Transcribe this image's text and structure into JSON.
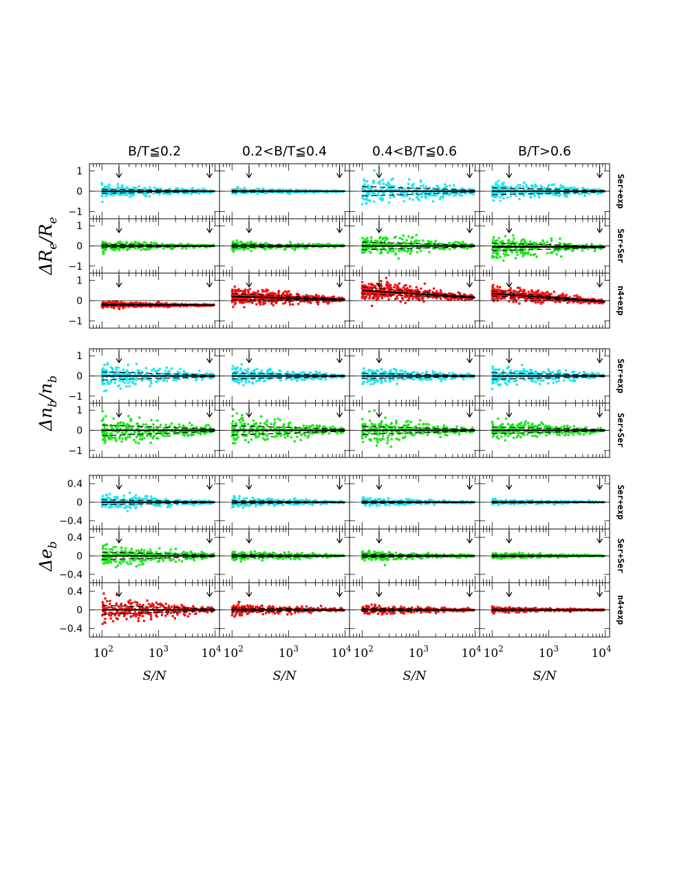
{
  "chart_data": {
    "type": "scatter",
    "column_titles": [
      "B/T≦0.2",
      "0.2<B/T≦0.4",
      "0.4<B/T≦0.6",
      "B/T>0.6"
    ],
    "xlabel": "S/N",
    "x_scale": "log",
    "xlim": [
      60,
      12000
    ],
    "x_tick_labels": [
      {
        "value": 100,
        "base": "10",
        "exp": "2"
      },
      {
        "value": 1000,
        "base": "10",
        "exp": "3"
      },
      {
        "value": 10000,
        "base": "10",
        "exp": "4"
      }
    ],
    "arrow_markers_x": [
      200,
      8000
    ],
    "groups": [
      {
        "ylabel": "ΔR_e/R_e",
        "ylabel_main": "ΔR",
        "ylabel_sub": "e",
        "ylabel_div": "/R",
        "ylabel_sub2": "e",
        "ylim": [
          -1.35,
          1.35
        ],
        "yticks": [
          -1,
          0,
          1
        ],
        "rows": [
          {
            "model": "Ser+exp",
            "color": "#22e5f0",
            "bias": [
              0.0,
              0.0,
              0.0,
              0.0
            ],
            "spread": [
              0.15,
              0.07,
              0.35,
              0.25
            ]
          },
          {
            "model": "Ser+Ser",
            "color": "#1ee61e",
            "bias": [
              0.0,
              0.0,
              0.0,
              -0.05
            ],
            "spread": [
              0.12,
              0.12,
              0.28,
              0.28
            ]
          },
          {
            "model": "n4+exp",
            "color": "#f01414",
            "bias": [
              -0.2,
              0.2,
              0.5,
              0.35
            ],
            "bias_end": [
              -0.22,
              0.05,
              0.15,
              -0.05
            ],
            "spread": [
              0.07,
              0.22,
              0.25,
              0.18
            ]
          }
        ]
      },
      {
        "ylabel": "Δn_b/n_b",
        "ylabel_main": "Δn",
        "ylabel_sub": "b",
        "ylabel_div": "/n",
        "ylabel_sub2": "b",
        "ylim": [
          -1.35,
          1.35
        ],
        "yticks": [
          -1,
          0,
          1
        ],
        "rows": [
          {
            "model": "Ser+exp",
            "color": "#22e5f0",
            "bias": [
              0.0,
              0.0,
              0.0,
              0.0
            ],
            "spread": [
              0.3,
              0.22,
              0.2,
              0.25
            ]
          },
          {
            "model": "Ser+Ser",
            "color": "#1ee61e",
            "bias": [
              0.0,
              0.0,
              0.0,
              0.0
            ],
            "spread": [
              0.4,
              0.35,
              0.3,
              0.25
            ]
          }
        ]
      },
      {
        "ylabel": "Δe_b",
        "ylabel_main": "Δe",
        "ylabel_sub": "b",
        "ylabel_div": "",
        "ylabel_sub2": "",
        "ylim": [
          -0.58,
          0.58
        ],
        "yticks": [
          -0.4,
          0,
          0.4
        ],
        "rows": [
          {
            "model": "Ser+exp",
            "color": "#22e5f0",
            "bias": [
              0.0,
              0.0,
              0.0,
              0.0
            ],
            "spread": [
              0.08,
              0.05,
              0.04,
              0.03
            ]
          },
          {
            "model": "Ser+Ser",
            "color": "#1ee61e",
            "bias": [
              0.0,
              0.0,
              0.0,
              0.0
            ],
            "spread": [
              0.12,
              0.05,
              0.05,
              0.03
            ]
          },
          {
            "model": "n4+exp",
            "color": "#f01414",
            "bias": [
              0.0,
              0.0,
              0.0,
              0.0
            ],
            "spread": [
              0.14,
              0.06,
              0.05,
              0.03
            ]
          }
        ]
      }
    ]
  }
}
